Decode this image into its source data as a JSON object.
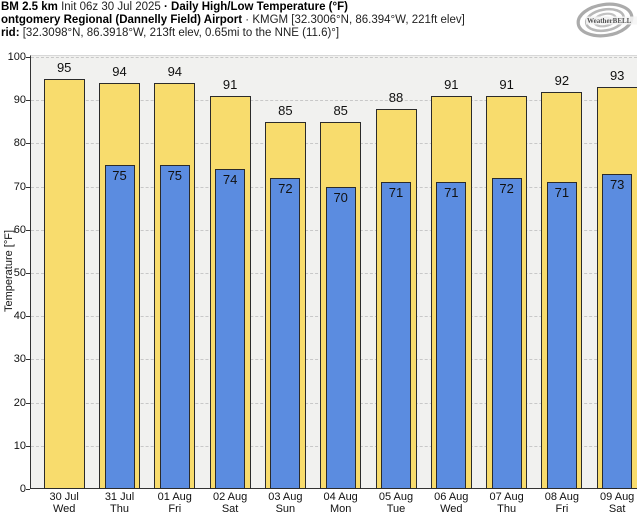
{
  "header": {
    "line1": {
      "model": "BM 2.5 km",
      "init": " Init 06z 30 Jul 2025 ",
      "title": "· Daily High/Low Temperature (°F)"
    },
    "line2": {
      "station": "ontgomery Regional (Dannelly Field) Airport",
      "meta": " · KMGM [32.3006°N, 86.394°W, 221ft elev]"
    },
    "line3": {
      "label": "rid:",
      "value": " [32.3098°N, 86.3918°W, 213ft elev, 0.65mi to the NNE (11.6)°]"
    }
  },
  "logo": {
    "text": "WeatherBELL"
  },
  "colors": {
    "high_fill": "#f8dc6d",
    "low_fill": "#5b8ce0",
    "bar_border": "#2b2b2b",
    "plot_bg": "#f1f1ef",
    "grid": "#c8c8c8",
    "axis": "#333333",
    "logo_gray": "#a8a8a8",
    "text": "#111111"
  },
  "chart_data": {
    "type": "bar",
    "title": "Daily High/Low Temperature (°F)",
    "ylabel": "Temperature [°F]",
    "xlabel": "",
    "ylim": [
      0,
      100
    ],
    "yticks": [
      0,
      10,
      20,
      30,
      40,
      50,
      60,
      70,
      80,
      90,
      100
    ],
    "grid": "horizontal-dashed",
    "legend": "none",
    "categories": [
      {
        "date": "30 Jul",
        "day": "Wed"
      },
      {
        "date": "31 Jul",
        "day": "Thu"
      },
      {
        "date": "01 Aug",
        "day": "Fri"
      },
      {
        "date": "02 Aug",
        "day": "Sat"
      },
      {
        "date": "03 Aug",
        "day": "Sun"
      },
      {
        "date": "04 Aug",
        "day": "Mon"
      },
      {
        "date": "05 Aug",
        "day": "Tue"
      },
      {
        "date": "06 Aug",
        "day": "Wed"
      },
      {
        "date": "07 Aug",
        "day": "Thu"
      },
      {
        "date": "08 Aug",
        "day": "Fri"
      },
      {
        "date": "09 Aug",
        "day": "Sat"
      }
    ],
    "series": [
      {
        "name": "High",
        "color": "#f8dc6d",
        "values": [
          95,
          94,
          94,
          91,
          85,
          85,
          88,
          91,
          91,
          92,
          93
        ]
      },
      {
        "name": "Low",
        "color": "#5b8ce0",
        "values": [
          null,
          75,
          75,
          74,
          72,
          70,
          71,
          71,
          72,
          71,
          73
        ]
      }
    ]
  }
}
